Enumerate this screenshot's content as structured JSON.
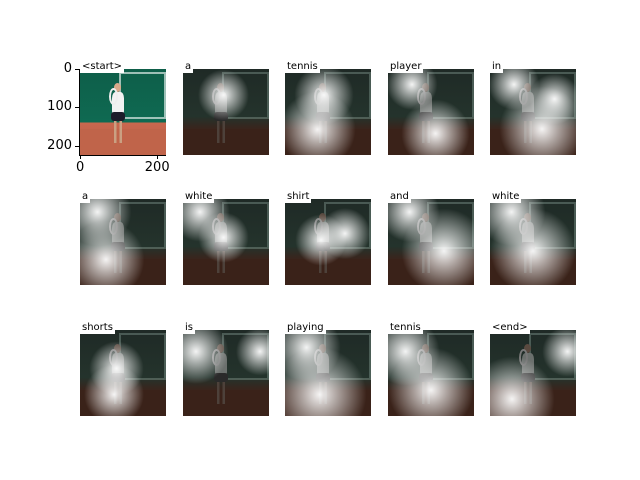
{
  "chart_data": {
    "type": "image-grid",
    "grid": {
      "rows": 3,
      "cols": 5
    },
    "words": [
      "<start>",
      "a",
      "tennis",
      "player",
      "in",
      "a",
      "white",
      "shirt",
      "and",
      "white",
      "shorts",
      "is",
      "playing",
      "tennis",
      "<end>"
    ],
    "first_panel_axes": {
      "x_ticks": [
        "0",
        "200"
      ],
      "y_ticks": [
        "0",
        "100",
        "200"
      ]
    }
  }
}
